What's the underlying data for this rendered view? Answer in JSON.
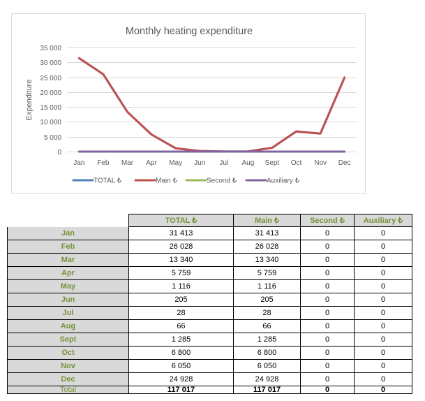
{
  "chart_data": {
    "type": "line",
    "title": "Monthly heating expenditure",
    "xlabel": "",
    "ylabel": "Expenditure",
    "categories": [
      "Jan",
      "Feb",
      "Mar",
      "Apr",
      "May",
      "Jun",
      "Jul",
      "Aug",
      "Sept",
      "Oct",
      "Nov",
      "Dec"
    ],
    "ylim": [
      0,
      35000
    ],
    "yticks": [
      0,
      5000,
      10000,
      15000,
      20000,
      25000,
      30000,
      35000
    ],
    "ytick_labels": [
      "0",
      "5 000",
      "10 000",
      "15 000",
      "20 000",
      "25 000",
      "30 000",
      "35 000"
    ],
    "grid": true,
    "legend_position": "bottom",
    "series": [
      {
        "name": "TOTAL ₺",
        "color": "#4F81BD",
        "values": [
          31413,
          26028,
          13340,
          5759,
          1116,
          205,
          28,
          66,
          1285,
          6800,
          6050,
          24928
        ]
      },
      {
        "name": "Main ₺",
        "color": "#C0504D",
        "values": [
          31413,
          26028,
          13340,
          5759,
          1116,
          205,
          28,
          66,
          1285,
          6800,
          6050,
          24928
        ]
      },
      {
        "name": "Second ₺",
        "color": "#9BBB59",
        "values": [
          0,
          0,
          0,
          0,
          0,
          0,
          0,
          0,
          0,
          0,
          0,
          0
        ]
      },
      {
        "name": "Auxiliary ₺",
        "color": "#8064A2",
        "values": [
          0,
          0,
          0,
          0,
          0,
          0,
          0,
          0,
          0,
          0,
          0,
          0
        ]
      }
    ],
    "draw_order_note": "TOTAL drawn beneath Main; Second beneath Auxiliary"
  },
  "table": {
    "headers": [
      "",
      "TOTAL  ₺",
      "Main ₺",
      "Second ₺",
      "Auxiliary ₺"
    ],
    "rows": [
      {
        "label": "Jan",
        "cells": [
          "31 413",
          "31 413",
          "0",
          "0"
        ]
      },
      {
        "label": "Feb",
        "cells": [
          "26 028",
          "26 028",
          "0",
          "0"
        ]
      },
      {
        "label": "Mar",
        "cells": [
          "13 340",
          "13 340",
          "0",
          "0"
        ]
      },
      {
        "label": "Apr",
        "cells": [
          "5 759",
          "5 759",
          "0",
          "0"
        ]
      },
      {
        "label": "May",
        "cells": [
          "1 116",
          "1 116",
          "0",
          "0"
        ]
      },
      {
        "label": "Jun",
        "cells": [
          "205",
          "205",
          "0",
          "0"
        ]
      },
      {
        "label": "Jul",
        "cells": [
          "28",
          "28",
          "0",
          "0"
        ]
      },
      {
        "label": "Aug",
        "cells": [
          "66",
          "66",
          "0",
          "0"
        ]
      },
      {
        "label": "Sept",
        "cells": [
          "1 285",
          "1 285",
          "0",
          "0"
        ]
      },
      {
        "label": "Oct",
        "cells": [
          "6 800",
          "6 800",
          "0",
          "0"
        ]
      },
      {
        "label": "Nov",
        "cells": [
          "6 050",
          "6 050",
          "0",
          "0"
        ]
      },
      {
        "label": "Dec",
        "cells": [
          "24 928",
          "24 928",
          "0",
          "0"
        ]
      }
    ],
    "total": {
      "label": "Total",
      "cells": [
        "117 017",
        "117 017",
        "0",
        "0"
      ]
    }
  }
}
